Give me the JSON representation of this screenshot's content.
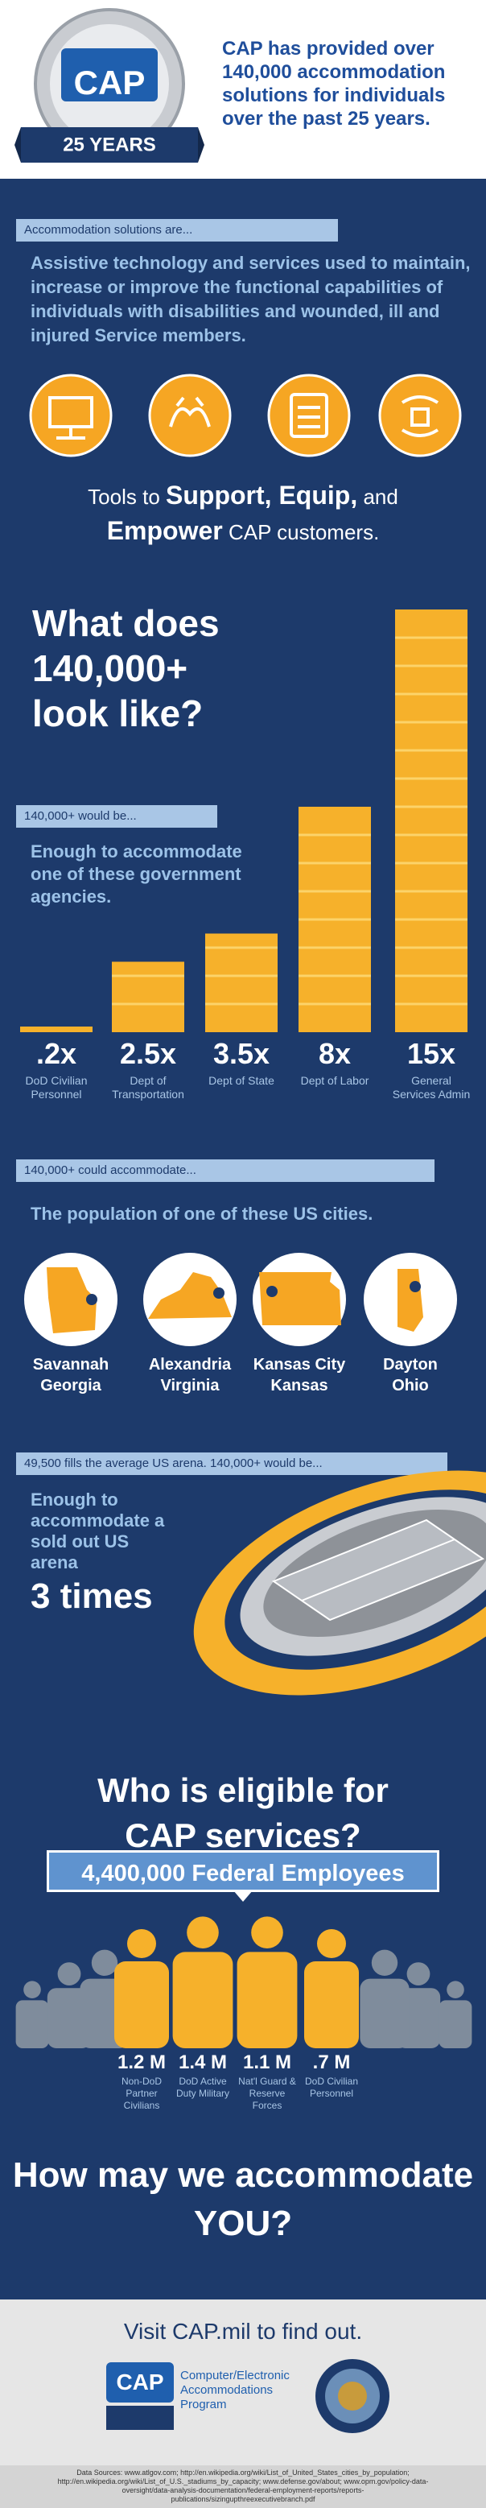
{
  "header": {
    "logo_text": "CAP",
    "logo_years": "25 YEARS",
    "headline": "CAP has provided over 140,000 accommodation solutions for individuals over the past 25 years."
  },
  "definition": {
    "label": "Accommodation solutions are...",
    "text": "Assistive technology and services used to maintain, increase or improve the functional capabilities of individuals with disabilities and wounded, ill and injured Service members.",
    "tagline": [
      "Tools to",
      "Support, Equip,",
      "and",
      "Empower",
      "CAP customers."
    ]
  },
  "agencies": {
    "question": "What does 140,000+ look like?",
    "label": "140,000+ would be...",
    "text": "Enough to accommodate one of these government agencies.",
    "items": [
      {
        "multiple": {
          "value": 0.2,
          "label": ".2x"
        },
        "name": "DoD Civilian Personnel"
      },
      {
        "multiple": {
          "value": 2.5,
          "label": "2.5x"
        },
        "name": "Dept of Transportation"
      },
      {
        "multiple": {
          "value": 3.5,
          "label": "3.5x"
        },
        "name": "Dept of State"
      },
      {
        "multiple": {
          "value": 8,
          "label": "8x"
        },
        "name": "Dept of Labor"
      },
      {
        "multiple": {
          "value": 15,
          "label": "15x"
        },
        "name": "General Services Admin"
      }
    ]
  },
  "cities": {
    "label": "140,000+ could accommodate...",
    "text": "The population of one of these US cities.",
    "items": [
      {
        "city": "Savannah",
        "state": "Georgia"
      },
      {
        "city": "Alexandria",
        "state": "Virginia"
      },
      {
        "city": "Kansas City",
        "state": "Kansas"
      },
      {
        "city": "Dayton",
        "state": "Ohio"
      }
    ]
  },
  "arena": {
    "label": "49,500 fills the average US arena. 140,000+ would be...",
    "text": "Enough to accommodate a sold out US arena",
    "times": "3 times"
  },
  "eligibility": {
    "title": "Who is eligible for CAP services?",
    "banner": "4,400,000 Federal Employees",
    "groups": [
      {
        "count": "1.2 M",
        "label": "Non-DoD Partner Civilians"
      },
      {
        "count": "1.4 M",
        "label": "DoD Active Duty Military"
      },
      {
        "count": "1.1 M",
        "label": "Nat'l Guard & Reserve Forces"
      },
      {
        "count": ".7 M",
        "label": "DoD Civilian Personnel"
      }
    ]
  },
  "closing": {
    "title": "How may we accommodate YOU?",
    "cta": "Visit CAP.mil to find out.",
    "logo_text": "CAP",
    "program": "Computer/Electronic Accommodations Program",
    "sources": "Data Sources: www.atlgov.com; http://en.wikipedia.org/wiki/List_of_United_States_cities_by_population; http://en.wikipedia.org/wiki/List_of_U.S._stadiums_by_capacity; www.defense.gov/about; www.opm.gov/policy-data-oversight/data-analysis-documentation/federal-employment-reports/reports-publications/sizingupthreexecutivebranch.pdf"
  }
}
